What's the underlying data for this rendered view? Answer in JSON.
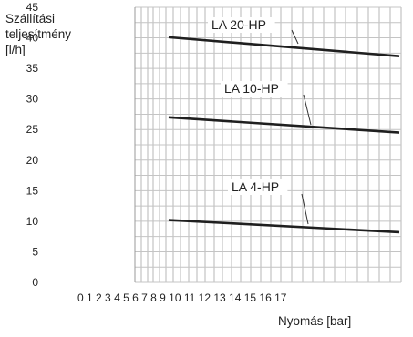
{
  "chart_data": {
    "type": "line",
    "ylabel_lines": [
      "Szállítási",
      "teljesítmény",
      "[l/h]"
    ],
    "xlabel": "Nyomás [bar]",
    "y_ticks": [
      0,
      5,
      10,
      15,
      20,
      25,
      30,
      35,
      40,
      45
    ],
    "ylim": [
      0,
      45
    ],
    "x_ticks": [
      0,
      1,
      2,
      3,
      4,
      5,
      6,
      7,
      8,
      9,
      10,
      11,
      12,
      13,
      14,
      15,
      16,
      17
    ],
    "xlim": [
      0,
      17
    ],
    "grid": true,
    "series": [
      {
        "name": "LA 20-HP",
        "x": [
          0,
          17
        ],
        "y": [
          40.1,
          37.0
        ]
      },
      {
        "name": "LA 10-HP",
        "x": [
          0,
          17
        ],
        "y": [
          27.0,
          24.5
        ]
      },
      {
        "name": "LA 4-HP",
        "x": [
          0,
          17
        ],
        "y": [
          10.2,
          8.2
        ]
      }
    ]
  }
}
